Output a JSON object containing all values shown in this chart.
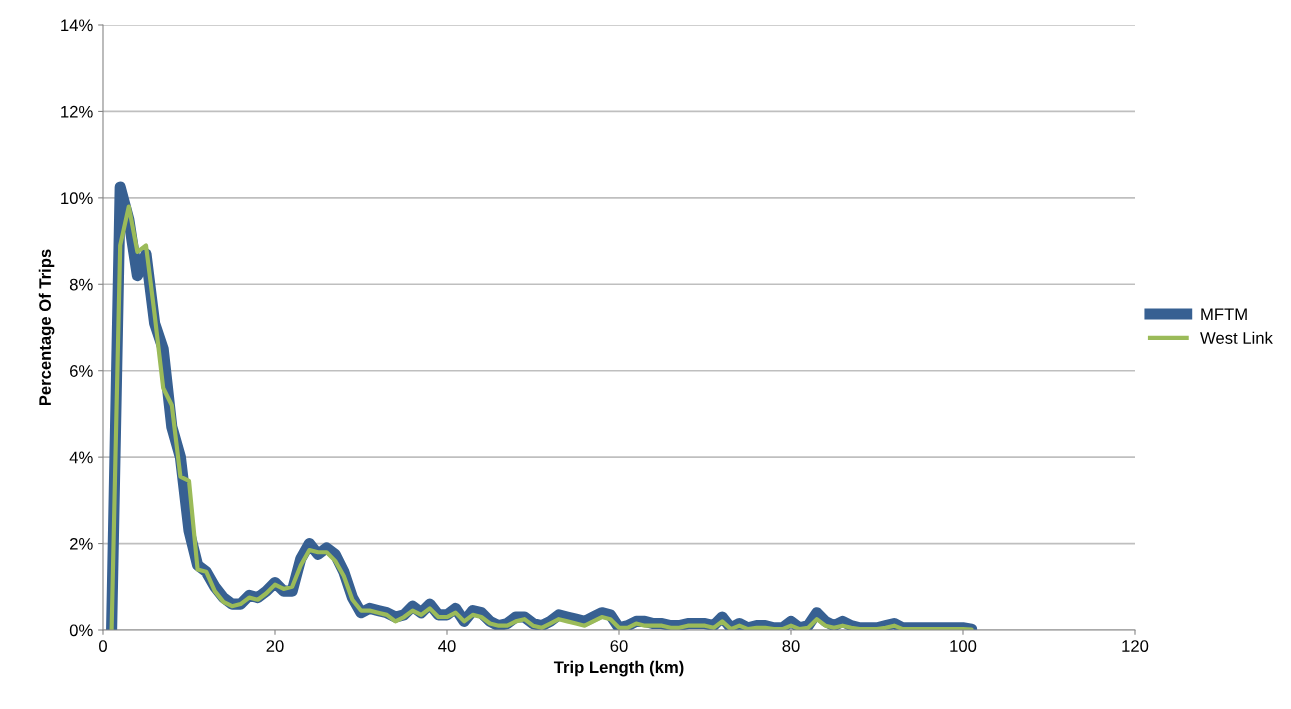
{
  "chart_data": {
    "type": "line",
    "xlabel": "Trip Length (km)",
    "ylabel": "Percentage Of Trips",
    "x": [
      1,
      2,
      3,
      4,
      5,
      6,
      7,
      8,
      9,
      10,
      11,
      12,
      13,
      14,
      15,
      16,
      17,
      18,
      19,
      20,
      21,
      22,
      23,
      24,
      25,
      26,
      27,
      28,
      29,
      30,
      31,
      32,
      33,
      34,
      35,
      36,
      37,
      38,
      39,
      40,
      41,
      42,
      43,
      44,
      45,
      46,
      47,
      48,
      49,
      50,
      51,
      52,
      53,
      54,
      55,
      56,
      57,
      58,
      59,
      60,
      61,
      62,
      63,
      64,
      65,
      66,
      67,
      68,
      69,
      70,
      71,
      72,
      73,
      74,
      75,
      76,
      77,
      78,
      79,
      80,
      81,
      82,
      83,
      84,
      85,
      86,
      87,
      88,
      89,
      90,
      91,
      92,
      93,
      94,
      95,
      96,
      97,
      98,
      99,
      100,
      101
    ],
    "series": [
      {
        "name": "MFTM",
        "color": "#376092",
        "values": [
          0,
          10.25,
          9.5,
          8.2,
          8.7,
          7.1,
          6.5,
          4.7,
          4.0,
          2.3,
          1.5,
          1.35,
          1.0,
          0.75,
          0.6,
          0.6,
          0.8,
          0.75,
          0.9,
          1.1,
          0.9,
          0.9,
          1.65,
          2.0,
          1.75,
          1.9,
          1.75,
          1.35,
          0.75,
          0.4,
          0.5,
          0.45,
          0.4,
          0.3,
          0.35,
          0.55,
          0.4,
          0.6,
          0.35,
          0.35,
          0.5,
          0.2,
          0.45,
          0.4,
          0.2,
          0.1,
          0.15,
          0.3,
          0.3,
          0.15,
          0.1,
          0.2,
          0.35,
          0.3,
          0.25,
          0.2,
          0.3,
          0.4,
          0.35,
          0.05,
          0.1,
          0.2,
          0.2,
          0.15,
          0.15,
          0.1,
          0.1,
          0.15,
          0.15,
          0.15,
          0.1,
          0.3,
          0.05,
          0.15,
          0.05,
          0.1,
          0.1,
          0.05,
          0.05,
          0.2,
          0.05,
          0.1,
          0.4,
          0.2,
          0.1,
          0.2,
          0.1,
          0.05,
          0.05,
          0.05,
          0.1,
          0.15,
          0.05,
          0.05,
          0.05,
          0.05,
          0.05,
          0.05,
          0.05,
          0.05,
          0.02
        ]
      },
      {
        "name": "West Link",
        "color": "#9bbb59",
        "values": [
          0,
          8.9,
          9.8,
          8.75,
          8.9,
          7.3,
          5.6,
          5.2,
          3.55,
          3.45,
          1.4,
          1.35,
          0.9,
          0.65,
          0.55,
          0.6,
          0.75,
          0.7,
          0.85,
          1.05,
          0.95,
          1.0,
          1.5,
          1.85,
          1.8,
          1.8,
          1.6,
          1.25,
          0.7,
          0.45,
          0.45,
          0.4,
          0.35,
          0.2,
          0.3,
          0.45,
          0.35,
          0.5,
          0.3,
          0.3,
          0.4,
          0.2,
          0.35,
          0.3,
          0.15,
          0.1,
          0.1,
          0.2,
          0.25,
          0.1,
          0.05,
          0.15,
          0.25,
          0.2,
          0.15,
          0.1,
          0.2,
          0.3,
          0.25,
          0.05,
          0.05,
          0.15,
          0.1,
          0.1,
          0.1,
          0.05,
          0.05,
          0.1,
          0.1,
          0.1,
          0.05,
          0.2,
          0.02,
          0.1,
          0.02,
          0.05,
          0.05,
          0.02,
          0.02,
          0.1,
          0.02,
          0.05,
          0.25,
          0.1,
          0.05,
          0.1,
          0.05,
          0.02,
          0.02,
          0.02,
          0.05,
          0.1,
          0.02,
          0.02,
          0.02,
          0.02,
          0.02,
          0.02,
          0.02,
          0.02,
          0.01
        ]
      }
    ],
    "xlim": [
      0,
      120
    ],
    "xticks": [
      0,
      20,
      40,
      60,
      80,
      100,
      120
    ],
    "ylim": [
      0,
      14
    ],
    "yticks": [
      {
        "value": 0,
        "label": "0%"
      },
      {
        "value": 2,
        "label": "2%"
      },
      {
        "value": 4,
        "label": "4%"
      },
      {
        "value": 6,
        "label": "6%"
      },
      {
        "value": 8,
        "label": "8%"
      },
      {
        "value": 10,
        "label": "10%"
      },
      {
        "value": 12,
        "label": "12%"
      },
      {
        "value": 14,
        "label": "14%"
      }
    ],
    "grid": "y",
    "legend": "right",
    "marker": "none",
    "line_style": "solid"
  }
}
